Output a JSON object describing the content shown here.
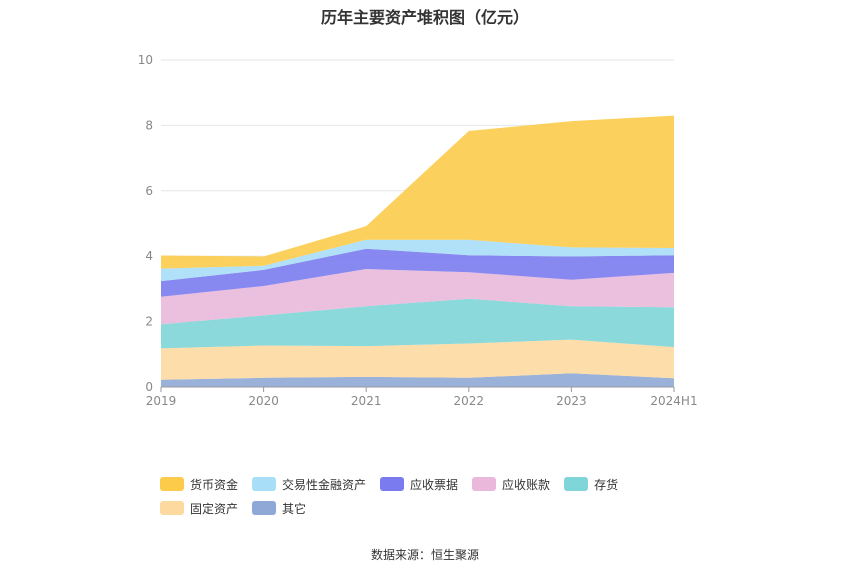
{
  "chart_data": {
    "type": "area",
    "stacked": true,
    "title": "历年主要资产堆积图（亿元）",
    "categories": [
      "2019",
      "2020",
      "2021",
      "2022",
      "2023",
      "2024H1"
    ],
    "ylim": [
      0,
      10
    ],
    "yticks": [
      0,
      2,
      4,
      6,
      8,
      10
    ],
    "grid": true,
    "legend_position": "bottom",
    "series": [
      {
        "name": "其它",
        "color": "#8fa8d6",
        "values": [
          0.22,
          0.28,
          0.31,
          0.28,
          0.42,
          0.27
        ]
      },
      {
        "name": "固定资产",
        "color": "#fdd9a0",
        "values": [
          0.96,
          0.99,
          0.94,
          1.05,
          1.03,
          0.95
        ]
      },
      {
        "name": "存货",
        "color": "#7fd5d8",
        "values": [
          0.74,
          0.92,
          1.22,
          1.37,
          1.02,
          1.22
        ]
      },
      {
        "name": "应收账款",
        "color": "#e9b8da",
        "values": [
          0.84,
          0.9,
          1.14,
          0.81,
          0.81,
          1.05
        ]
      },
      {
        "name": "应收票据",
        "color": "#7b7bf0",
        "values": [
          0.48,
          0.49,
          0.62,
          0.52,
          0.71,
          0.54
        ]
      },
      {
        "name": "交易性金融资产",
        "color": "#a8def8",
        "values": [
          0.38,
          0.13,
          0.27,
          0.47,
          0.28,
          0.22
        ]
      },
      {
        "name": "货币资金",
        "color": "#fccb4a",
        "values": [
          0.4,
          0.28,
          0.42,
          3.33,
          3.86,
          4.05
        ]
      }
    ]
  },
  "legend_order": [
    "货币资金",
    "交易性金融资产",
    "应收票据",
    "应收账款",
    "存货",
    "固定资产",
    "其它"
  ],
  "source": "数据来源：恒生聚源"
}
